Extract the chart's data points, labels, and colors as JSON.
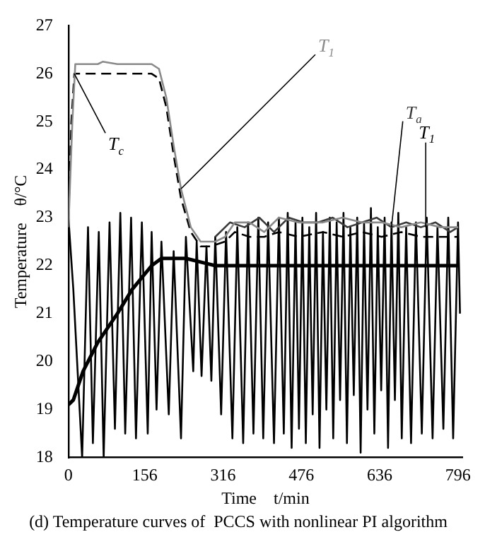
{
  "chart_data": {
    "type": "line",
    "title": "(d) Temperature curves of  PCCS with nonlinear PI algorithm",
    "xlabel": "Time    t/min",
    "ylabel": "Temperature    θ/°C",
    "xlim": [
      0,
      805
    ],
    "xticks": [
      0,
      156,
      316,
      476,
      636,
      796
    ],
    "ylim": [
      18,
      27
    ],
    "yticks": [
      18,
      19,
      20,
      21,
      22,
      23,
      24,
      25,
      26,
      27
    ],
    "grid": false,
    "legend": false,
    "marker": "none",
    "annotations": [
      {
        "text": "T$_{1}$",
        "x": 730,
        "y": 22.8
      }
    ],
    "series": [
      {
        "name": "T$_{1}$",
        "color": "#8a8a8a",
        "line_style": "solid",
        "x": [
          0,
          8,
          14,
          60,
          70,
          100,
          170,
          185,
          200,
          215,
          230,
          250,
          270,
          300,
          320,
          340,
          370,
          400,
          430,
          470,
          520,
          560,
          600,
          640,
          680,
          720,
          760,
          796
        ],
        "values": [
          22.8,
          25,
          26.2,
          26.2,
          26.25,
          26.2,
          26.2,
          26.1,
          25.5,
          24.5,
          23.6,
          22.8,
          22.5,
          22.5,
          22.6,
          22.9,
          22.9,
          22.7,
          23,
          22.9,
          22.9,
          23,
          22.9,
          22.9,
          22.8,
          22.9,
          22.8,
          22.8
        ]
      },
      {
        "name": "T$_{c}$",
        "color": "#000000",
        "line_style": "dashed",
        "x": [
          0,
          6,
          12,
          60,
          100,
          170,
          185,
          200,
          215,
          230,
          250,
          270,
          290,
          320,
          340,
          370,
          400,
          430,
          470,
          520,
          560,
          600,
          640,
          680,
          720,
          760,
          796
        ],
        "values": [
          23,
          25,
          26,
          26,
          26,
          26,
          25.9,
          25.3,
          24.3,
          23.4,
          22.7,
          22.4,
          22.4,
          22.5,
          22.7,
          22.6,
          22.6,
          22.7,
          22.6,
          22.7,
          22.6,
          22.7,
          22.6,
          22.7,
          22.6,
          22.6,
          22.6
        ]
      },
      {
        "name": "T$_{a}$",
        "color": "#3a3a3a",
        "line_style": "solid",
        "x": [
          300,
          330,
          360,
          390,
          420,
          450,
          480,
          510,
          540,
          570,
          600,
          630,
          660,
          690,
          720,
          750,
          780,
          796
        ],
        "values": [
          22.6,
          22.9,
          22.8,
          23,
          22.7,
          23,
          22.9,
          22.9,
          23,
          22.8,
          22.9,
          23,
          22.8,
          22.9,
          22.8,
          22.9,
          22.7,
          22.8
        ]
      },
      {
        "color": "#000000",
        "line_style": "solid",
        "x": [
          0,
          10,
          28,
          40,
          50,
          62,
          72,
          84,
          95,
          106,
          116,
          128,
          138,
          150,
          162,
          170,
          180,
          190,
          205,
          215,
          230,
          240,
          255,
          262,
          272,
          282,
          292,
          300,
          312,
          322,
          335,
          345,
          357,
          367,
          378,
          388,
          398,
          408,
          420,
          430,
          440,
          448,
          456,
          464,
          471,
          478,
          485,
          492,
          499,
          506,
          513,
          520,
          527,
          534,
          541,
          548,
          555,
          562,
          569,
          576,
          583,
          590,
          597,
          604,
          611,
          618,
          625,
          632,
          639,
          646,
          653,
          660,
          667,
          674,
          681,
          690,
          700,
          710,
          722,
          732,
          744,
          754,
          766,
          776,
          786,
          796,
          800
        ],
        "values": [
          23,
          21.5,
          18,
          22.8,
          18.3,
          22.7,
          18,
          22.9,
          18.6,
          23.1,
          18.5,
          23,
          18.4,
          22.9,
          18.5,
          22.7,
          19,
          22.5,
          18.9,
          22.3,
          18.4,
          22.6,
          19.8,
          22.5,
          19.7,
          22.4,
          19.6,
          22.6,
          18.9,
          22.7,
          18.4,
          22.8,
          18.3,
          22.9,
          18.5,
          23,
          18.4,
          22.9,
          18.3,
          23,
          18.5,
          23.1,
          18.2,
          22.9,
          18.6,
          23,
          18.3,
          22.8,
          18.9,
          23.1,
          18.2,
          22.7,
          19,
          23,
          18.4,
          22.9,
          19.2,
          23.1,
          18.3,
          22.8,
          19.3,
          23,
          18.1,
          22.9,
          19,
          23.2,
          18.5,
          22.8,
          19.4,
          23,
          18.2,
          22.9,
          19.2,
          23.1,
          18.4,
          22.8,
          18.3,
          22.9,
          18.5,
          23,
          18.4,
          22.8,
          18.6,
          23,
          18.4,
          22.9,
          21
        ]
      },
      {
        "color": "#000000",
        "line_style": "solid",
        "x": [
          0,
          10,
          30,
          60,
          100,
          130,
          170,
          190,
          240,
          280,
          300,
          400,
          500,
          600,
          700,
          796
        ],
        "values": [
          19.1,
          19.2,
          19.8,
          20.4,
          21,
          21.5,
          22,
          22.15,
          22.15,
          22.05,
          22,
          22,
          22,
          22,
          22,
          22
        ]
      }
    ]
  }
}
